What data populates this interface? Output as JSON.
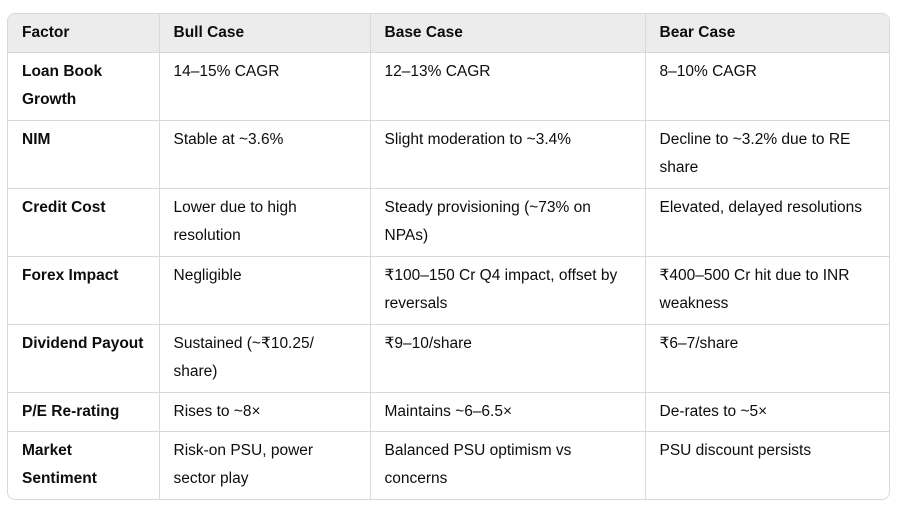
{
  "table": {
    "headers": [
      "Factor",
      "Bull Case",
      "Base Case",
      "Bear Case"
    ],
    "rows": [
      {
        "factor": "Loan Book Growth",
        "bull": "14–15% CAGR",
        "base": "12–13% CAGR",
        "bear": "8–10% CAGR"
      },
      {
        "factor": "NIM",
        "bull": "Stable at ~3.6%",
        "base": "Slight moderation to ~3.4%",
        "bear": "Decline to ~3.2% due to RE share"
      },
      {
        "factor": "Credit Cost",
        "bull": "Lower due to high resolution",
        "base": "Steady provisioning (~73% on NPAs)",
        "bear": "Elevated, delayed resolutions"
      },
      {
        "factor": "Forex Impact",
        "bull": "Negligible",
        "base": "₹100–150 Cr Q4 impact, offset by reversals",
        "bear": "₹400–500 Cr hit due to INR weakness"
      },
      {
        "factor": "Dividend Payout",
        "bull": "Sustained (~₹10.25/ share)",
        "base": "₹9–10/share",
        "bear": "₹6–7/share"
      },
      {
        "factor": "P/E Re-rating",
        "bull": "Rises to ~8×",
        "base": "Maintains ~6–6.5×",
        "bear": "De-rates to ~5×"
      },
      {
        "factor": "Market Sentiment",
        "bull": "Risk-on PSU, power sector play",
        "base": "Balanced PSU optimism vs concerns",
        "bear": "PSU discount persists"
      }
    ]
  }
}
